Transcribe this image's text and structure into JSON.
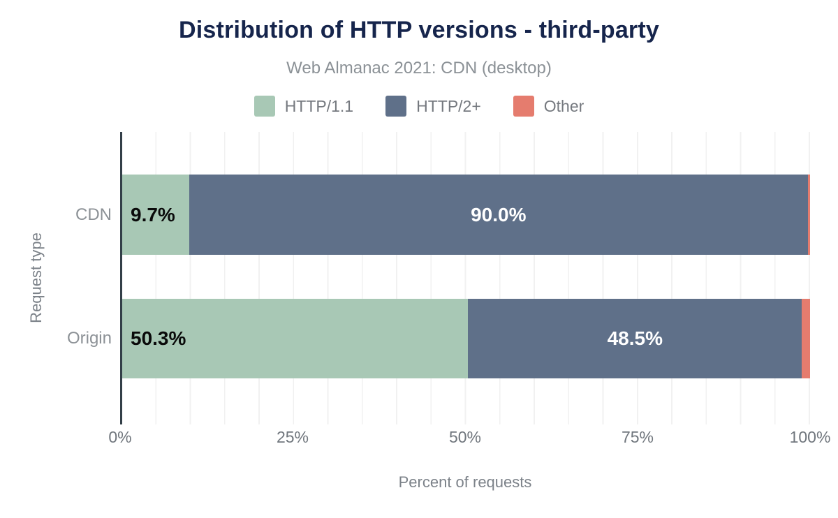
{
  "title": "Distribution of HTTP versions - third-party",
  "subtitle": "Web Almanac 2021: CDN (desktop)",
  "legend": {
    "items": [
      {
        "label": "HTTP/1.1",
        "color": "#a8c8b5"
      },
      {
        "label": "HTTP/2+",
        "color": "#5f7089"
      },
      {
        "label": "Other",
        "color": "#e57c6e"
      }
    ]
  },
  "axes": {
    "x_title": "Percent of requests",
    "y_title": "Request type",
    "x_ticks": [
      "0%",
      "25%",
      "50%",
      "75%",
      "100%"
    ],
    "y_categories": [
      "CDN",
      "Origin"
    ]
  },
  "bars": {
    "cdn": {
      "category": "CDN",
      "http11_label": "9.7%",
      "http2_label": "90.0%"
    },
    "origin": {
      "category": "Origin",
      "http11_label": "50.3%",
      "http2_label": "48.5%"
    }
  },
  "colors": {
    "title_text": "#16254c",
    "subtitle_text": "#8b9196",
    "axis_line": "#333f48",
    "gridline": "#f1f1f1",
    "http11": "#a8c8b5",
    "http2": "#5f7089",
    "other": "#e57c6e"
  },
  "chart_data": {
    "type": "bar",
    "orientation": "horizontal",
    "stacked": true,
    "title": "Distribution of HTTP versions - third-party",
    "subtitle": "Web Almanac 2021: CDN (desktop)",
    "xlabel": "Percent of requests",
    "ylabel": "Request type",
    "categories": [
      "CDN",
      "Origin"
    ],
    "series": [
      {
        "name": "HTTP/1.1",
        "values": [
          9.7,
          50.3
        ],
        "color": "#a8c8b5"
      },
      {
        "name": "HTTP/2+",
        "values": [
          90.0,
          48.5
        ],
        "color": "#5f7089"
      },
      {
        "name": "Other",
        "values": [
          0.3,
          1.2
        ],
        "color": "#e57c6e"
      }
    ],
    "xlim": [
      0,
      100
    ],
    "x_tick_values": [
      0,
      25,
      50,
      75,
      100
    ],
    "grid": true,
    "gridline_step_percent": 5,
    "legend_position": "top",
    "data_labels": {
      "CDN": {
        "HTTP/1.1": "9.7%",
        "HTTP/2+": "90.0%",
        "Other": ""
      },
      "Origin": {
        "HTTP/1.1": "50.3%",
        "HTTP/2+": "48.5%",
        "Other": ""
      }
    }
  }
}
